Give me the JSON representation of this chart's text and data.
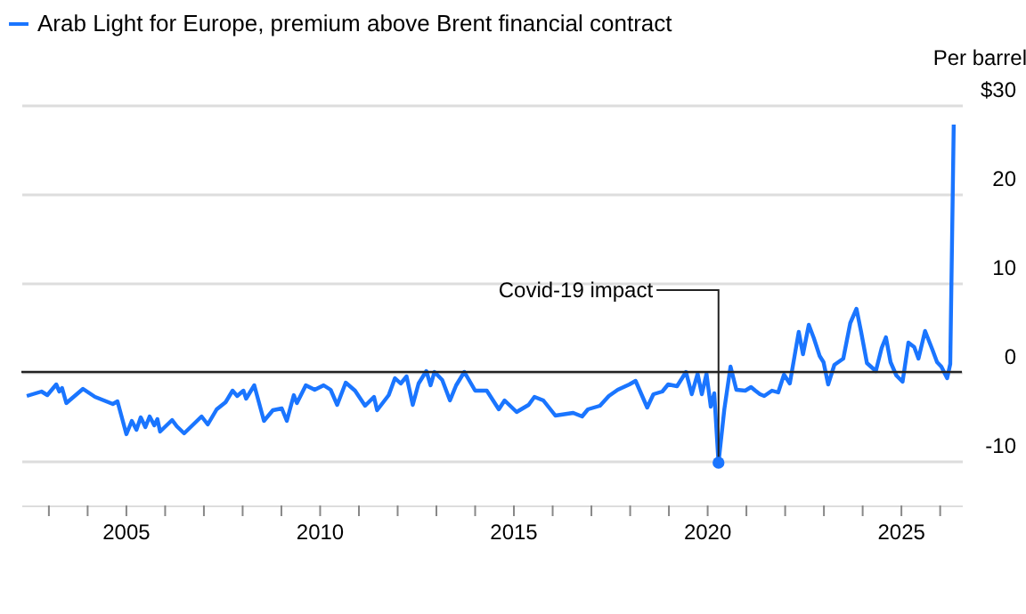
{
  "chart_data": {
    "type": "line",
    "ylabel": "Per barrel",
    "legend": "top left",
    "grid": "y",
    "line_style": "solid",
    "marker": "none",
    "xlim": [
      2002.29,
      2026.56
    ],
    "ylim": [
      -15,
      30
    ],
    "yticks": [
      -10,
      0,
      10,
      20,
      {
        "value": 30,
        "label": "$30"
      }
    ],
    "xticks": [
      {
        "value": 2003,
        "label": null
      },
      {
        "value": 2004,
        "label": null
      },
      2005,
      {
        "value": 2006,
        "label": null
      },
      {
        "value": 2007,
        "label": null
      },
      {
        "value": 2008,
        "label": null
      },
      {
        "value": 2009,
        "label": null
      },
      2010,
      {
        "value": 2011,
        "label": null
      },
      {
        "value": 2012,
        "label": null
      },
      {
        "value": 2013,
        "label": null
      },
      {
        "value": 2014,
        "label": null
      },
      2015,
      {
        "value": 2016,
        "label": null
      },
      {
        "value": 2017,
        "label": null
      },
      {
        "value": 2018,
        "label": null
      },
      {
        "value": 2019,
        "label": null
      },
      2020,
      {
        "value": 2021,
        "label": null
      },
      {
        "value": 2022,
        "label": null
      },
      {
        "value": 2023,
        "label": null
      },
      {
        "value": 2024,
        "label": null
      },
      2025,
      {
        "value": 2026,
        "label": null
      }
    ],
    "ref_lines": [
      {
        "axis": "y",
        "value": 0,
        "color": "#222222"
      }
    ],
    "annotations": [
      {
        "text": "Covid-19 impact",
        "x": 2020.28,
        "y": -10.2
      }
    ],
    "series": [
      {
        "name": "Arab Light for Europe, premium above Brent financial contract",
        "color": "#1a75ff",
        "x": [
          2002.43,
          2002.81,
          2002.96,
          2003.19,
          2003.27,
          2003.34,
          2003.45,
          2003.88,
          2004.19,
          2004.65,
          2004.77,
          2005.0,
          2005.14,
          2005.26,
          2005.37,
          2005.49,
          2005.6,
          2005.72,
          2005.8,
          2005.87,
          2006.18,
          2006.3,
          2006.49,
          2006.94,
          2007.1,
          2007.33,
          2007.56,
          2007.74,
          2007.86,
          2008.02,
          2008.09,
          2008.3,
          2008.55,
          2008.78,
          2009.01,
          2009.14,
          2009.32,
          2009.4,
          2009.63,
          2009.86,
          2010.09,
          2010.27,
          2010.44,
          2010.66,
          2010.9,
          2011.16,
          2011.39,
          2011.47,
          2011.77,
          2011.93,
          2012.08,
          2012.23,
          2012.39,
          2012.54,
          2012.74,
          2012.85,
          2012.95,
          2013.15,
          2013.35,
          2013.51,
          2013.72,
          2014.0,
          2014.3,
          2014.61,
          2014.76,
          2015.07,
          2015.38,
          2015.53,
          2015.76,
          2016.07,
          2016.53,
          2016.76,
          2016.91,
          2017.22,
          2017.45,
          2017.68,
          2017.98,
          2018.14,
          2018.44,
          2018.6,
          2018.83,
          2018.98,
          2019.21,
          2019.44,
          2019.59,
          2019.74,
          2019.85,
          2019.97,
          2020.08,
          2020.17,
          2020.28,
          2020.43,
          2020.59,
          2020.74,
          2020.97,
          2021.12,
          2021.23,
          2021.35,
          2021.46,
          2021.66,
          2021.82,
          2021.97,
          2022.12,
          2022.35,
          2022.46,
          2022.61,
          2022.74,
          2022.89,
          2022.99,
          2023.11,
          2023.27,
          2023.5,
          2023.68,
          2023.84,
          2023.96,
          2024.11,
          2024.34,
          2024.49,
          2024.6,
          2024.72,
          2024.87,
          2025.03,
          2025.18,
          2025.33,
          2025.44,
          2025.61,
          2025.8,
          2025.92,
          2026.03,
          2026.18,
          2026.26,
          2026.35
        ],
        "values": [
          -2.7,
          -2.2,
          -2.6,
          -1.4,
          -2.2,
          -1.8,
          -3.5,
          -1.9,
          -2.8,
          -3.6,
          -3.3,
          -7.0,
          -5.5,
          -6.5,
          -5.1,
          -6.2,
          -5.0,
          -6.0,
          -5.3,
          -6.7,
          -5.4,
          -6.1,
          -6.9,
          -5.0,
          -5.9,
          -4.2,
          -3.4,
          -2.1,
          -2.7,
          -2.1,
          -3.0,
          -1.5,
          -5.5,
          -4.3,
          -4.1,
          -5.5,
          -2.6,
          -3.5,
          -1.5,
          -2.0,
          -1.5,
          -2.0,
          -3.7,
          -1.2,
          -2.1,
          -3.8,
          -2.8,
          -4.3,
          -2.6,
          -0.7,
          -1.3,
          -0.5,
          -3.7,
          -1.3,
          0.1,
          -1.5,
          0.0,
          -0.9,
          -3.2,
          -1.5,
          0.0,
          -2.1,
          -2.1,
          -4.2,
          -3.2,
          -4.5,
          -3.7,
          -2.8,
          -3.2,
          -4.9,
          -4.6,
          -5.0,
          -4.2,
          -3.8,
          -2.7,
          -2.0,
          -1.4,
          -1.0,
          -4.0,
          -2.5,
          -2.2,
          -1.4,
          -1.6,
          0.0,
          -2.5,
          -0.2,
          -2.5,
          -0.2,
          -3.9,
          -2.4,
          -10.2,
          -4.2,
          0.6,
          -2.0,
          -2.1,
          -1.7,
          -2.1,
          -2.5,
          -2.7,
          -2.1,
          -2.3,
          -0.3,
          -1.3,
          4.5,
          2.0,
          5.3,
          3.8,
          1.8,
          1.1,
          -1.4,
          0.8,
          1.5,
          5.5,
          7.1,
          4.5,
          1.0,
          0.1,
          2.7,
          3.9,
          1.1,
          -0.4,
          -1.1,
          3.3,
          2.8,
          1.5,
          4.6,
          2.5,
          1.1,
          0.6,
          -0.7,
          0.9,
          27.8
        ]
      }
    ]
  }
}
